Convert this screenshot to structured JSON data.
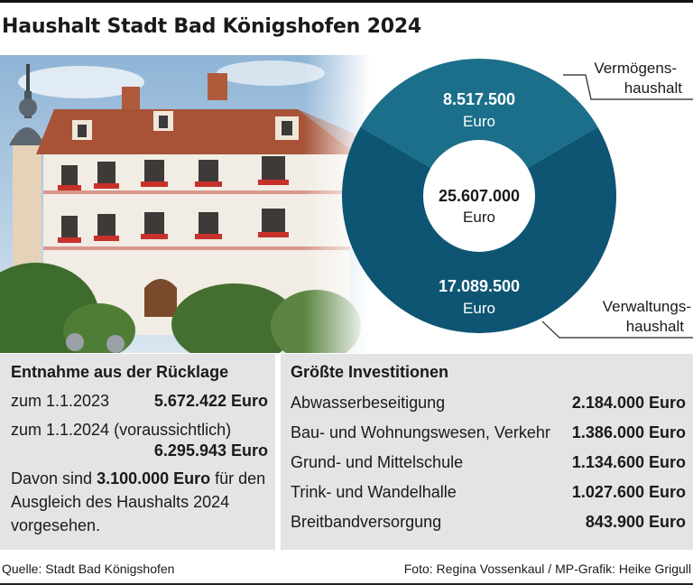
{
  "title": "Haushalt Stadt Bad Königshofen 2024",
  "colors": {
    "dark_teal": "#0d5573",
    "light_teal": "#1b6f8a",
    "panel_bg": "#e4e4e4"
  },
  "chart_data": {
    "type": "pie",
    "total": {
      "value": "25.607.000",
      "unit": "Euro"
    },
    "slices": [
      {
        "label_line1": "Vermögens-",
        "label_line2": "haushalt",
        "value_text": "8.517.500",
        "unit": "Euro",
        "value": 8517500,
        "color": "#1b6f8a"
      },
      {
        "label_line1": "Verwaltungs-",
        "label_line2": "haushalt",
        "value_text": "17.089.500",
        "unit": "Euro",
        "value": 17089500,
        "color": "#0d5573"
      }
    ]
  },
  "reserve": {
    "heading": "Entnahme aus der Rücklage",
    "rows": [
      {
        "label": "zum 1.1.2023",
        "amount": "5.672.422 Euro"
      },
      {
        "label": "zum 1.1.2024 (voraussichtlich)",
        "amount": "6.295.943 Euro"
      }
    ],
    "note_prefix": "Davon sind ",
    "note_amount": "3.100.000 Euro",
    "note_suffix": " für den Ausgleich des Haushalts 2024 vorgesehen."
  },
  "investments": {
    "heading": "Größte Investitionen",
    "rows": [
      {
        "label": "Abwasserbeseitigung",
        "amount": "2.184.000 Euro"
      },
      {
        "label": "Bau- und Wohnungswesen, Verkehr",
        "amount": "1.386.000 Euro"
      },
      {
        "label": "Grund- und Mittelschule",
        "amount": "1.134.600 Euro"
      },
      {
        "label": "Trink- und Wandelhalle",
        "amount": "1.027.600 Euro"
      },
      {
        "label": "Breitbandversorgung",
        "amount": "843.900 Euro"
      }
    ]
  },
  "footer": {
    "source": "Quelle: Stadt Bad Königshofen",
    "credit": "Foto: Regina Vossenkaul / MP-Grafik: Heike Grigull"
  }
}
